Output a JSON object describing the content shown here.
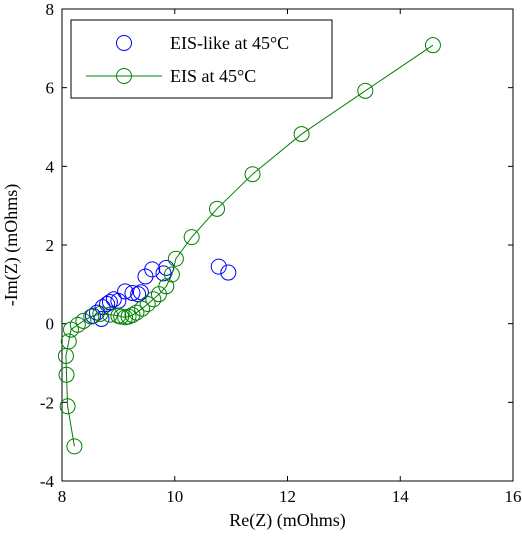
{
  "chart_data": {
    "type": "scatter",
    "title": "",
    "xlabel": "Re(Z) (mOhms)",
    "ylabel": "-Im(Z) (mOhms)",
    "xlim": [
      8,
      16
    ],
    "ylim": [
      -4,
      8
    ],
    "xticks": [
      "8",
      "10",
      "12",
      "14",
      "16"
    ],
    "yticks": [
      "-4",
      "-2",
      "0",
      "2",
      "4",
      "6",
      "8"
    ],
    "grid": false,
    "legend_position": "top-left",
    "series": [
      {
        "name": "EIS-like at 45°C",
        "style": "markers",
        "marker": "circle-open",
        "color": "#0000ff",
        "points": [
          [
            8.55,
            0.2
          ],
          [
            8.62,
            0.28
          ],
          [
            8.7,
            0.12
          ],
          [
            8.72,
            0.42
          ],
          [
            8.8,
            0.5
          ],
          [
            8.85,
            0.55
          ],
          [
            8.92,
            0.62
          ],
          [
            9.0,
            0.58
          ],
          [
            9.12,
            0.82
          ],
          [
            9.25,
            0.78
          ],
          [
            9.35,
            0.75
          ],
          [
            9.4,
            0.8
          ],
          [
            9.48,
            1.2
          ],
          [
            9.6,
            1.38
          ],
          [
            9.8,
            1.28
          ],
          [
            9.85,
            1.42
          ],
          [
            10.78,
            1.45
          ],
          [
            10.95,
            1.3
          ]
        ]
      },
      {
        "name": "EIS at 45°C",
        "style": "line-markers",
        "marker": "circle-open",
        "color": "#008000",
        "points": [
          [
            8.22,
            -3.12
          ],
          [
            8.1,
            -2.1
          ],
          [
            8.08,
            -1.3
          ],
          [
            8.07,
            -0.82
          ],
          [
            8.12,
            -0.45
          ],
          [
            8.16,
            -0.15
          ],
          [
            8.28,
            -0.03
          ],
          [
            8.38,
            0.07
          ],
          [
            8.52,
            0.18
          ],
          [
            8.68,
            0.25
          ],
          [
            8.85,
            0.23
          ],
          [
            9.0,
            0.2
          ],
          [
            9.05,
            0.18
          ],
          [
            9.12,
            0.16
          ],
          [
            9.18,
            0.18
          ],
          [
            9.25,
            0.22
          ],
          [
            9.32,
            0.28
          ],
          [
            9.42,
            0.38
          ],
          [
            9.52,
            0.5
          ],
          [
            9.62,
            0.62
          ],
          [
            9.72,
            0.75
          ],
          [
            9.85,
            0.95
          ],
          [
            9.95,
            1.25
          ],
          [
            10.02,
            1.65
          ],
          [
            10.3,
            2.2
          ],
          [
            10.75,
            2.92
          ],
          [
            11.38,
            3.8
          ],
          [
            12.25,
            4.82
          ],
          [
            13.38,
            5.92
          ],
          [
            14.58,
            7.08
          ]
        ]
      }
    ]
  }
}
